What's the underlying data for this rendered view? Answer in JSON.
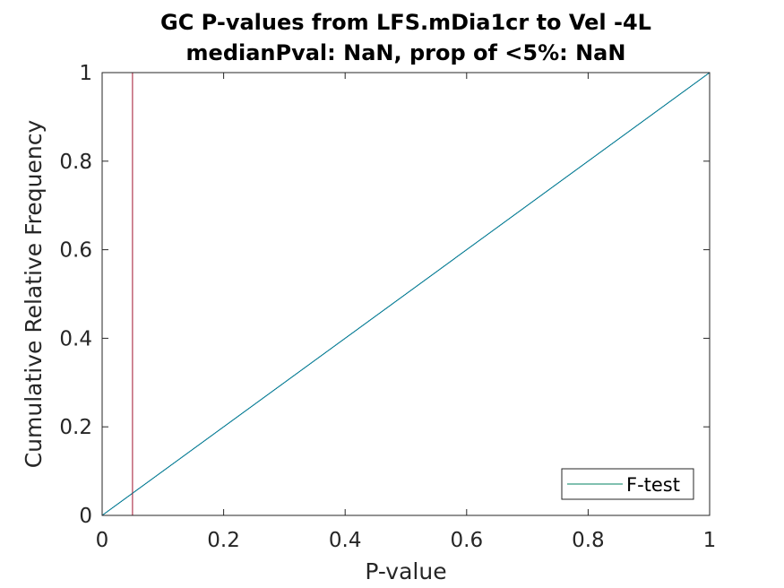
{
  "chart_data": {
    "type": "line",
    "title": [
      "GC P-values from LFS.mDia1cr to Vel -4L",
      "medianPval: NaN, prop of <5%: NaN"
    ],
    "xlabel": "P-value",
    "ylabel": "Cumulative Relative Frequency",
    "xlim": [
      0,
      1
    ],
    "ylim": [
      0,
      1
    ],
    "xticks": [
      0,
      0.2,
      0.4,
      0.6,
      0.8,
      1
    ],
    "yticks": [
      0,
      0.2,
      0.4,
      0.6,
      0.8,
      1
    ],
    "xtick_labels": [
      "0",
      "0.2",
      "0.4",
      "0.6",
      "0.8",
      "1"
    ],
    "ytick_labels": [
      "0",
      "0.2",
      "0.4",
      "0.6",
      "0.8",
      "1"
    ],
    "grid": false,
    "legend_position": "bottom-right",
    "series": [
      {
        "name": "F-test",
        "x": [
          0,
          1
        ],
        "y": [
          0,
          1
        ],
        "color": "#008060"
      }
    ],
    "reference_lines": [
      {
        "type": "diagonal",
        "x": [
          0,
          1
        ],
        "y": [
          0,
          1
        ],
        "color": "#0072BD"
      },
      {
        "type": "vertical",
        "x": 0.05,
        "color": "#A2142F"
      }
    ]
  }
}
